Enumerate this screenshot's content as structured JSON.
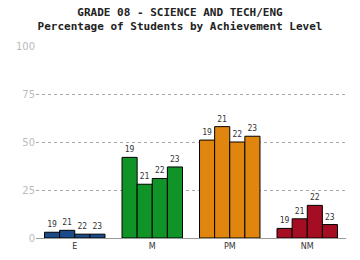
{
  "chart_data": {
    "type": "bar",
    "title": "GRADE 08 - SCIENCE AND TECH/ENG",
    "subtitle": "Percentage of Students by Achievement Level",
    "categories": [
      "E",
      "M",
      "PM",
      "NM"
    ],
    "colors": [
      "#1a4a8a",
      "#109428",
      "#e0860e",
      "#a50e22"
    ],
    "series": [
      {
        "name": "19",
        "values": [
          3,
          42,
          51,
          5
        ]
      },
      {
        "name": "21",
        "values": [
          4,
          28,
          58,
          10
        ]
      },
      {
        "name": "22",
        "values": [
          2,
          31,
          50,
          17
        ]
      },
      {
        "name": "23",
        "values": [
          2,
          37,
          53,
          7
        ]
      }
    ],
    "ylim": [
      0,
      100
    ],
    "yticks": [
      0,
      25,
      50,
      75,
      100
    ],
    "grid": true
  }
}
